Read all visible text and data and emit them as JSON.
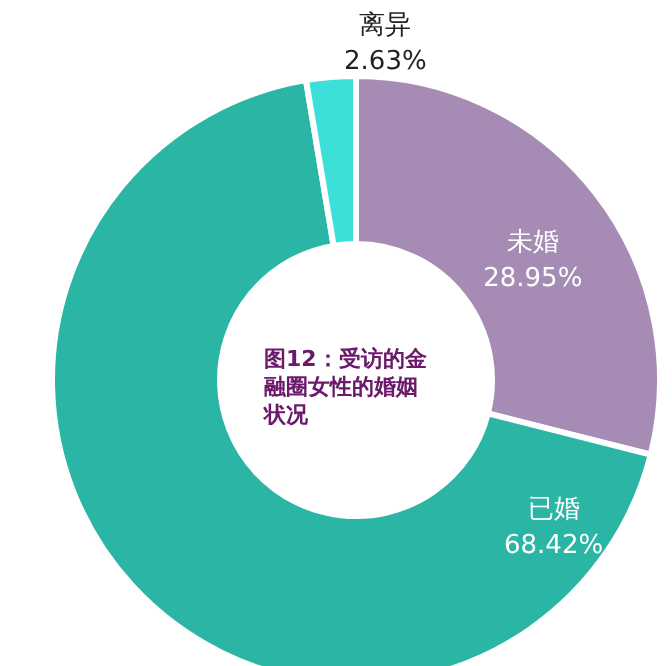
{
  "chart_data": {
    "type": "donut",
    "title": "图12：受访的金融圈女性的婚姻状况",
    "categories": [
      "未婚",
      "已婚",
      "离异"
    ],
    "values": [
      28.95,
      68.42,
      2.63
    ],
    "colors": [
      "#a68bb5",
      "#2bb5a5",
      "#3de0d8"
    ],
    "value_labels": [
      "28.95%",
      "68.42%",
      "2.63%"
    ],
    "legend": false
  }
}
